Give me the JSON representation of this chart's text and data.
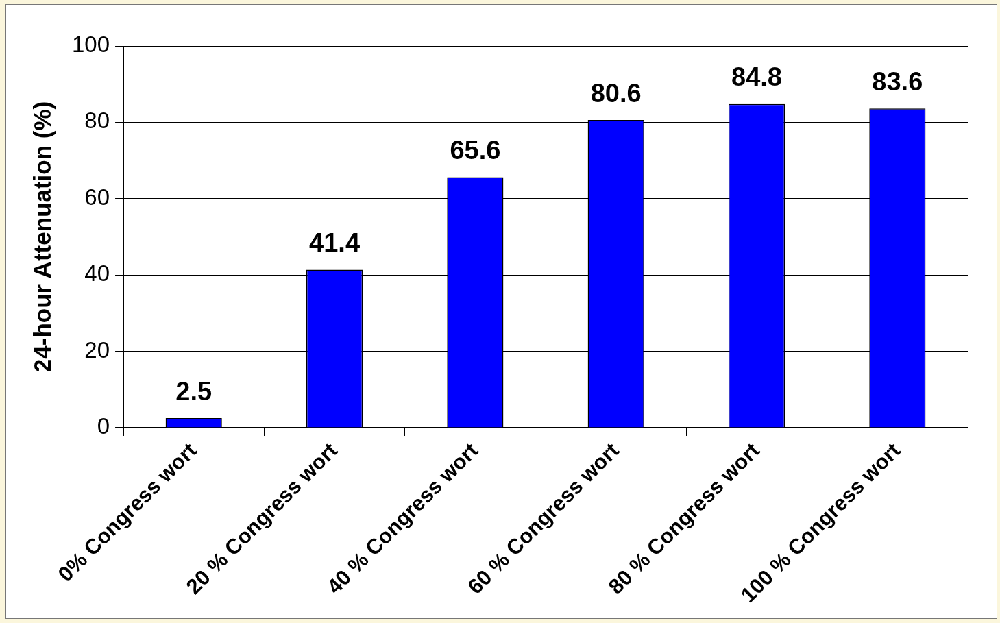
{
  "chart_data": {
    "type": "bar",
    "ylabel": "24-hour Attenuation (%)",
    "categories": [
      "0% Congress wort",
      "20 % Congress wort",
      "40 % Congress wort",
      "60 % Congress wort",
      "80 % Congress wort",
      "100 % Congress wort"
    ],
    "values": [
      2.5,
      41.4,
      65.6,
      80.6,
      84.8,
      83.6
    ],
    "color": "#0000ff",
    "ylim": [
      0,
      100
    ],
    "yticks": [
      0,
      20,
      40,
      60,
      80,
      100
    ],
    "grid": "y",
    "legend": false,
    "data_labels": true
  }
}
